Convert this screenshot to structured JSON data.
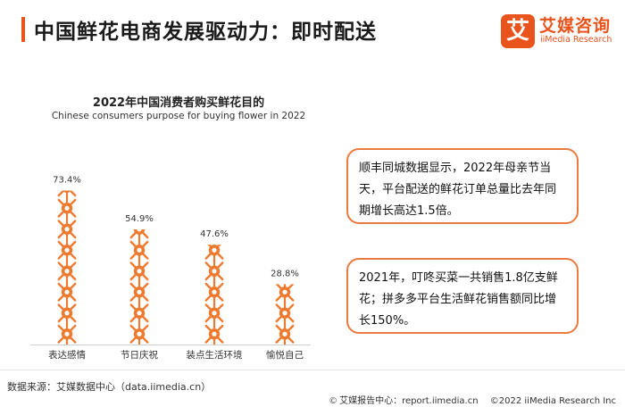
{
  "header": {
    "title": "中国鲜花电商发展驱动力：即时配送",
    "logo_mark": "艾",
    "logo_cn": "艾媒咨询",
    "logo_en": "iiMedia Research",
    "accent_color": "#E9531C"
  },
  "chart_data": {
    "type": "bar",
    "title": "2022年中国消费者购买鲜花目的",
    "subtitle": "Chinese consumers purpose for buying flower in 2022",
    "categories": [
      "表达感情",
      "节日庆祝",
      "装点生活环境",
      "愉悦自己"
    ],
    "values": [
      73.4,
      54.9,
      47.6,
      28.8
    ],
    "value_labels": [
      "73.4%",
      "54.9%",
      "47.6%",
      "28.8%"
    ],
    "unit": "%",
    "ylim": [
      0,
      80
    ],
    "bar_style": "stacked flower-icon pictograph",
    "bar_color": "#EE7A30",
    "grid": false,
    "legend": "none"
  },
  "notes": [
    "顺丰同城数据显示，2022年母亲节当天，平台配送的鲜花订单总量比去年同期增长高达1.5倍。",
    "2021年，叮咚买菜一共销售1.8亿支鲜花；拼多多平台生活鲜花销售额同比增长150%。"
  ],
  "footer": {
    "source": "数据来源：艾媒数据中心（data.iimedia.cn）",
    "report_icon": "copyright-icon",
    "report": "艾媒报告中心：report.iimedia.cn",
    "copyright": "©2022  iiMedia Research Inc"
  }
}
